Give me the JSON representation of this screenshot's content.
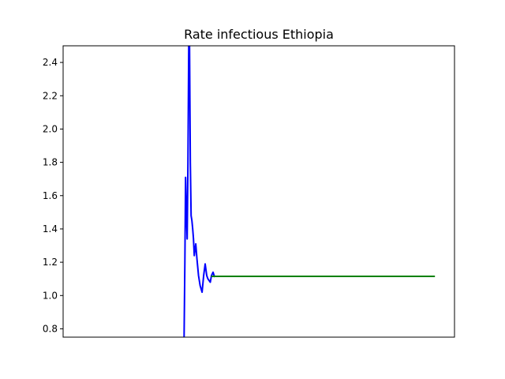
{
  "chart_data": {
    "type": "line",
    "title": "Rate infectious Ethiopia",
    "xlabel": "",
    "ylabel": "",
    "xlim": [
      0,
      100
    ],
    "ylim": [
      0.75,
      2.5
    ],
    "grid": false,
    "x_ticks_shown": false,
    "y_ticks": [
      0.8,
      1.0,
      1.2,
      1.4,
      1.6,
      1.8,
      2.0,
      2.2,
      2.4
    ],
    "y_tick_labels": [
      "0.8",
      "1.0",
      "1.2",
      "1.4",
      "1.6",
      "1.8",
      "2.0",
      "2.2",
      "2.4"
    ],
    "series": [
      {
        "color": "#0000ff",
        "x": [
          30.9,
          31.1,
          31.3,
          31.5,
          31.7,
          31.9,
          32.1,
          32.3,
          32.5,
          32.7,
          32.9,
          33.1,
          33.3,
          33.5,
          33.9,
          34.2,
          34.6,
          35.0,
          35.5,
          35.9,
          36.3,
          36.7,
          37.0,
          37.3,
          37.6,
          37.9,
          38.3,
          38.7
        ],
        "y": [
          0.75,
          1.2,
          1.71,
          1.5,
          1.34,
          1.8,
          2.5,
          2.5,
          1.8,
          1.48,
          1.45,
          1.4,
          1.34,
          1.24,
          1.31,
          1.22,
          1.12,
          1.06,
          1.02,
          1.12,
          1.19,
          1.12,
          1.1,
          1.09,
          1.08,
          1.12,
          1.14,
          1.11
        ]
      },
      {
        "color": "#008000",
        "x": [
          37.8,
          95.0
        ],
        "y": [
          1.115,
          1.115
        ]
      }
    ]
  }
}
